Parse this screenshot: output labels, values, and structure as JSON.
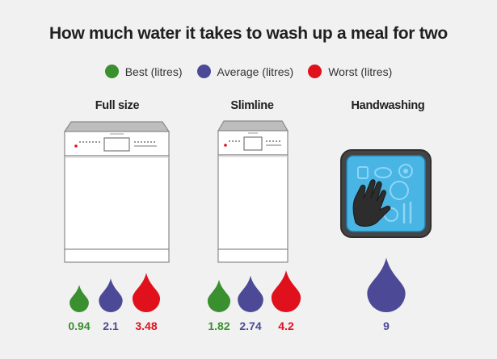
{
  "title": "How much water it takes to wash up a meal for two",
  "legend": [
    {
      "label": "Best (litres)",
      "color": "#3a8f2e"
    },
    {
      "label": "Average (litres)",
      "color": "#4c4a96"
    },
    {
      "label": "Worst (litres)",
      "color": "#e0101c"
    }
  ],
  "chart_data": {
    "type": "pictogram",
    "title": "How much water it takes to wash up a meal for two",
    "unit": "litres",
    "series_names": [
      "Best (litres)",
      "Average (litres)",
      "Worst (litres)"
    ],
    "groups": [
      {
        "name": "Full size",
        "icon": "dishwasher-icon",
        "values": {
          "best": 0.94,
          "average": 2.1,
          "worst": 3.48
        },
        "labels": {
          "best": "0.94",
          "average": "2.1",
          "worst": "3.48"
        }
      },
      {
        "name": "Slimline",
        "icon": "slimline-dishwasher-icon",
        "values": {
          "best": 1.82,
          "average": 2.74,
          "worst": 4.2
        },
        "labels": {
          "best": "1.82",
          "average": "2.74",
          "worst": "4.2"
        }
      },
      {
        "name": "Handwashing",
        "icon": "handwashing-icon",
        "values": {
          "average": 9
        },
        "labels": {
          "average": "9"
        }
      }
    ]
  }
}
